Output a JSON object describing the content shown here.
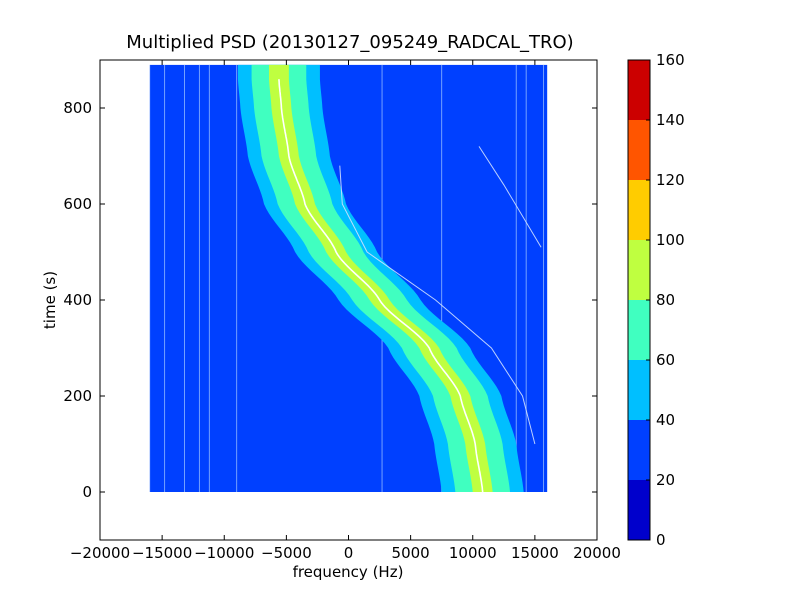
{
  "chart_data": {
    "type": "heatmap",
    "title": "Multiplied PSD (20130127_095249_RADCAL_TRO)",
    "xlabel": "frequency (Hz)",
    "ylabel": "time (s)",
    "xlim": [
      -20000,
      20000
    ],
    "ylim": [
      -100,
      900
    ],
    "xticks": [
      -20000,
      -15000,
      -10000,
      -5000,
      0,
      5000,
      10000,
      15000,
      20000
    ],
    "xtick_labels": [
      "−20000",
      "−15000",
      "−10000",
      "−5000",
      "0",
      "5000",
      "10000",
      "15000",
      "20000"
    ],
    "yticks": [
      0,
      200,
      400,
      600,
      800
    ],
    "ytick_labels": [
      "0",
      "200",
      "400",
      "600",
      "800"
    ],
    "data_extent": {
      "x": [
        -16000,
        16000
      ],
      "y": [
        0,
        890
      ]
    },
    "colorbar": {
      "levels": [
        0,
        20,
        40,
        60,
        80,
        100,
        120,
        140,
        160
      ],
      "level_labels": [
        "0",
        "20",
        "40",
        "60",
        "80",
        "100",
        "120",
        "140",
        "160"
      ],
      "colors": [
        "#0000cc",
        "#0040ff",
        "#00bfff",
        "#40ffc0",
        "#bfff40",
        "#ffcc00",
        "#ff5500",
        "#cc0000"
      ]
    },
    "background_level_color": "#0040ff",
    "doppler_curve": {
      "points": [
        {
          "t": 0,
          "f": 10800
        },
        {
          "t": 100,
          "f": 10200
        },
        {
          "t": 200,
          "f": 9000
        },
        {
          "t": 300,
          "f": 6500
        },
        {
          "t": 400,
          "f": 2500
        },
        {
          "t": 500,
          "f": -1000
        },
        {
          "t": 600,
          "f": -3500
        },
        {
          "t": 700,
          "f": -4800
        },
        {
          "t": 800,
          "f": -5400
        },
        {
          "t": 860,
          "f": -5600
        }
      ],
      "band_halfwidths_hz": {
        "cyan": 3300,
        "aquamarine": 2200,
        "yellowgreen": 800
      }
    },
    "harmonic_curve": {
      "points": [
        {
          "t": 100,
          "f": 15000
        },
        {
          "t": 200,
          "f": 14000
        },
        {
          "t": 300,
          "f": 11500
        },
        {
          "t": 400,
          "f": 7000
        },
        {
          "t": 500,
          "f": 1500
        },
        {
          "t": 600,
          "f": -500
        },
        {
          "t": 680,
          "f": -700
        }
      ]
    },
    "upper_right_trace": {
      "points": [
        {
          "t": 720,
          "f": 10500
        },
        {
          "t": 640,
          "f": 12500
        },
        {
          "t": 510,
          "f": 15500
        }
      ]
    },
    "vertical_lines_hz": [
      -16000,
      -14800,
      -13200,
      -12000,
      -11200,
      -9000,
      2700,
      7500,
      13500,
      14300,
      15700
    ]
  }
}
